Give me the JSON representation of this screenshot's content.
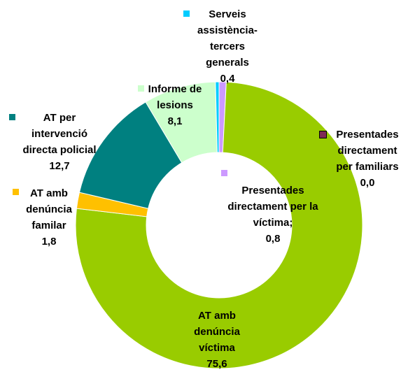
{
  "chart_data": {
    "type": "donut",
    "categories": [
      "Presentades directament per familiars",
      "Presentades directament per la víctima;",
      "AT amb denúncia víctima",
      "AT amb denúncia familar",
      "AT per intervenció directa policial",
      "Informe de lesions",
      "Serveis assistència-tercers generals"
    ],
    "values": [
      0.0,
      0.8,
      75.6,
      1.8,
      12.7,
      8.1,
      0.4
    ],
    "value_labels": [
      "0,0",
      "0,8",
      "75,6",
      "1,8",
      "12,7",
      "8,1",
      "0,4"
    ],
    "colors": [
      "#7f2a55",
      "#cc99ff",
      "#99cc00",
      "#ffc000",
      "#008080",
      "#ccffcc",
      "#00ccff"
    ]
  }
}
